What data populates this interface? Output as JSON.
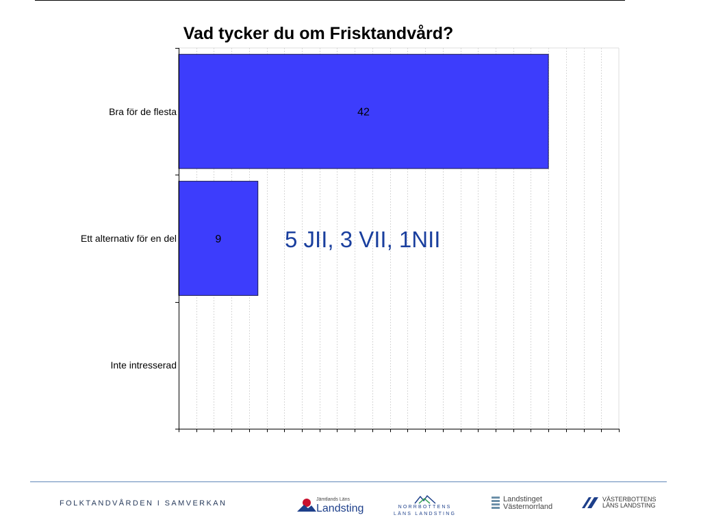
{
  "chart_data": {
    "type": "bar",
    "orientation": "horizontal",
    "title": "Vad tycker du om Frisktandvård?",
    "categories": [
      "Bra för de flesta",
      "Ett alternativ för en del",
      "Inte intresserad"
    ],
    "values": [
      42,
      9,
      0
    ],
    "data_labels": [
      "42",
      "9",
      ""
    ],
    "xlim": [
      0,
      50
    ],
    "grid": true,
    "bar_color": "#3d3dfc",
    "annotation": "5 JII, 3 VII, 1NII"
  },
  "footer": {
    "org_name": "FOLKTANDVÅRDEN I SAMVERKAN",
    "logos": {
      "jamtland": {
        "small": "Jämtlands Läns",
        "large": "Landsting"
      },
      "norrbotten": {
        "line1": "NORRBOTTENS",
        "line2": "LÄNS LANDSTING"
      },
      "vasternorrland": {
        "line1": "Landstinget",
        "line2": "Västernorrland"
      },
      "vasterbotten": {
        "line1": "VÄSTERBOTTENS",
        "line2": "LÄNS LANDSTING"
      }
    }
  }
}
